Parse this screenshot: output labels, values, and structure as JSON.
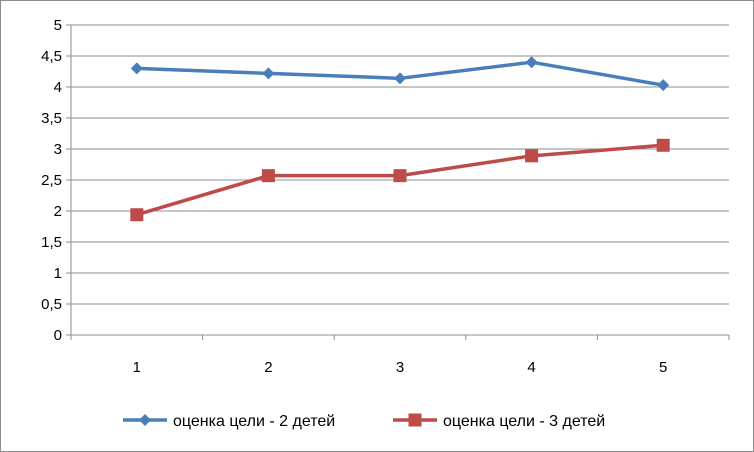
{
  "chart_data": {
    "type": "line",
    "title": "",
    "xlabel": "",
    "ylabel": "",
    "x": [
      1,
      2,
      3,
      4,
      5
    ],
    "x_tick_labels": [
      "1",
      "2",
      "3",
      "4",
      "5"
    ],
    "ylim": [
      0,
      5
    ],
    "y_tick_labels": [
      "0",
      "0,5",
      "1",
      "1,5",
      "2",
      "2,5",
      "3",
      "3,5",
      "4",
      "4,5",
      "5"
    ],
    "grid": "horizontal",
    "legend_position": "bottom",
    "series": [
      {
        "name": "оценка цели - 2 детей",
        "values": [
          4.3,
          4.22,
          4.14,
          4.4,
          4.03
        ],
        "color": "#4a7ebb",
        "marker": "diamond"
      },
      {
        "name": "оценка цели - 3 детей",
        "values": [
          1.94,
          2.57,
          2.57,
          2.89,
          3.06
        ],
        "color": "#be4b48",
        "marker": "square"
      }
    ]
  }
}
